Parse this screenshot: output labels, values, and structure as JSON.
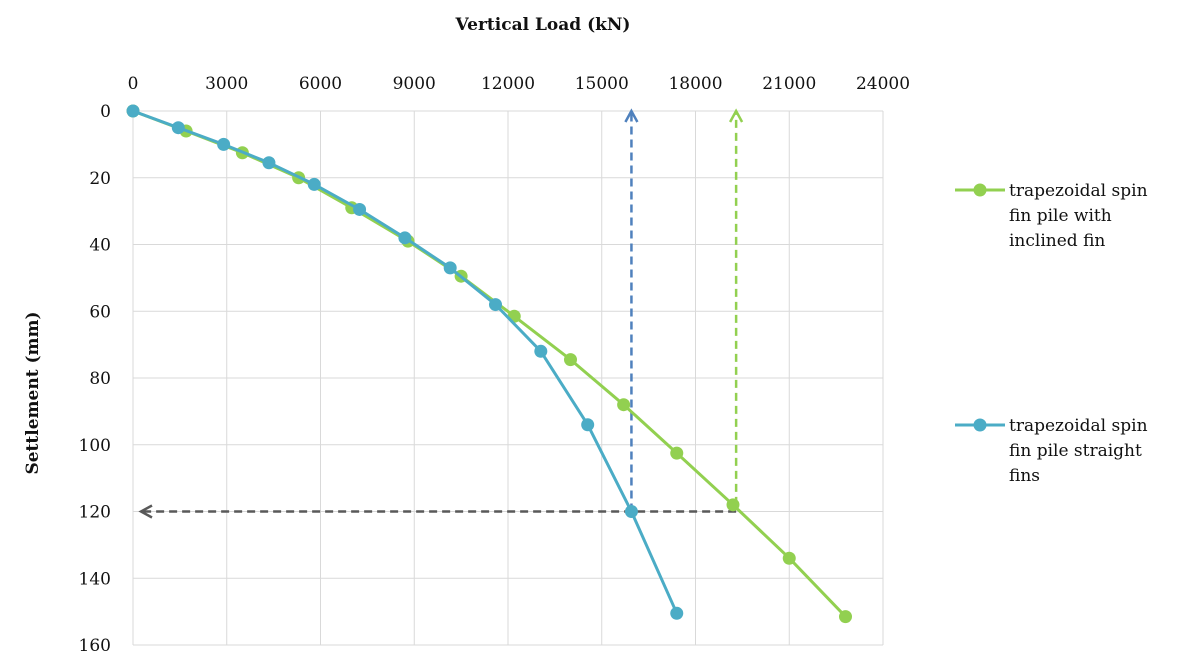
{
  "chart_data": {
    "type": "line",
    "xlabel": "Vertical Load (kN)",
    "ylabel": "Settlement (mm)",
    "xlim": [
      0,
      24000
    ],
    "ylim": [
      0,
      160
    ],
    "y_inverted": true,
    "x_axis_position": "top",
    "x_ticks": [
      0,
      3000,
      6000,
      9000,
      12000,
      15000,
      18000,
      21000,
      24000
    ],
    "y_ticks": [
      0,
      20,
      40,
      60,
      80,
      100,
      120,
      140,
      160
    ],
    "grid": true,
    "legend_position": "right",
    "series": [
      {
        "name": "trapezoidal spin fin pile with inclined fin",
        "color": "#92d050",
        "x": [
          0,
          1700,
          3500,
          5300,
          7000,
          8800,
          10500,
          12200,
          14000,
          15700,
          17400,
          19200,
          21000,
          22800
        ],
        "y": [
          0,
          6,
          12.5,
          20,
          29,
          39,
          49.5,
          61.5,
          74.5,
          88,
          102.5,
          118,
          134,
          151.5
        ]
      },
      {
        "name": "trapezoidal spin fin pile straight fins",
        "color": "#4bacc6",
        "x": [
          0,
          1450,
          2900,
          4350,
          5800,
          7250,
          8700,
          10150,
          11600,
          13050,
          14550,
          15950,
          17400
        ],
        "y": [
          0,
          5,
          10,
          15.5,
          22,
          29.5,
          38,
          47,
          58,
          72,
          94,
          120,
          150.5
        ]
      }
    ],
    "reference_lines": [
      {
        "name": "settlement-120-line",
        "color": "#595959",
        "from": [
          19300,
          120
        ],
        "to": [
          0,
          120
        ],
        "arrow": "end"
      },
      {
        "name": "straight-fin-load-line",
        "color": "#4f81bd",
        "from": [
          15950,
          120
        ],
        "to": [
          15950,
          0
        ],
        "arrow": "end"
      },
      {
        "name": "inclined-fin-load-line",
        "color": "#92d050",
        "from": [
          19300,
          118
        ],
        "to": [
          19300,
          0
        ],
        "arrow": "end"
      }
    ]
  },
  "legend": {
    "items": [
      {
        "lines": [
          "trapezoidal spin",
          "fin pile with",
          "inclined fin"
        ],
        "color": "#92d050"
      },
      {
        "lines": [
          "trapezoidal spin",
          "fin pile straight",
          "fins"
        ],
        "color": "#4bacc6"
      }
    ]
  }
}
